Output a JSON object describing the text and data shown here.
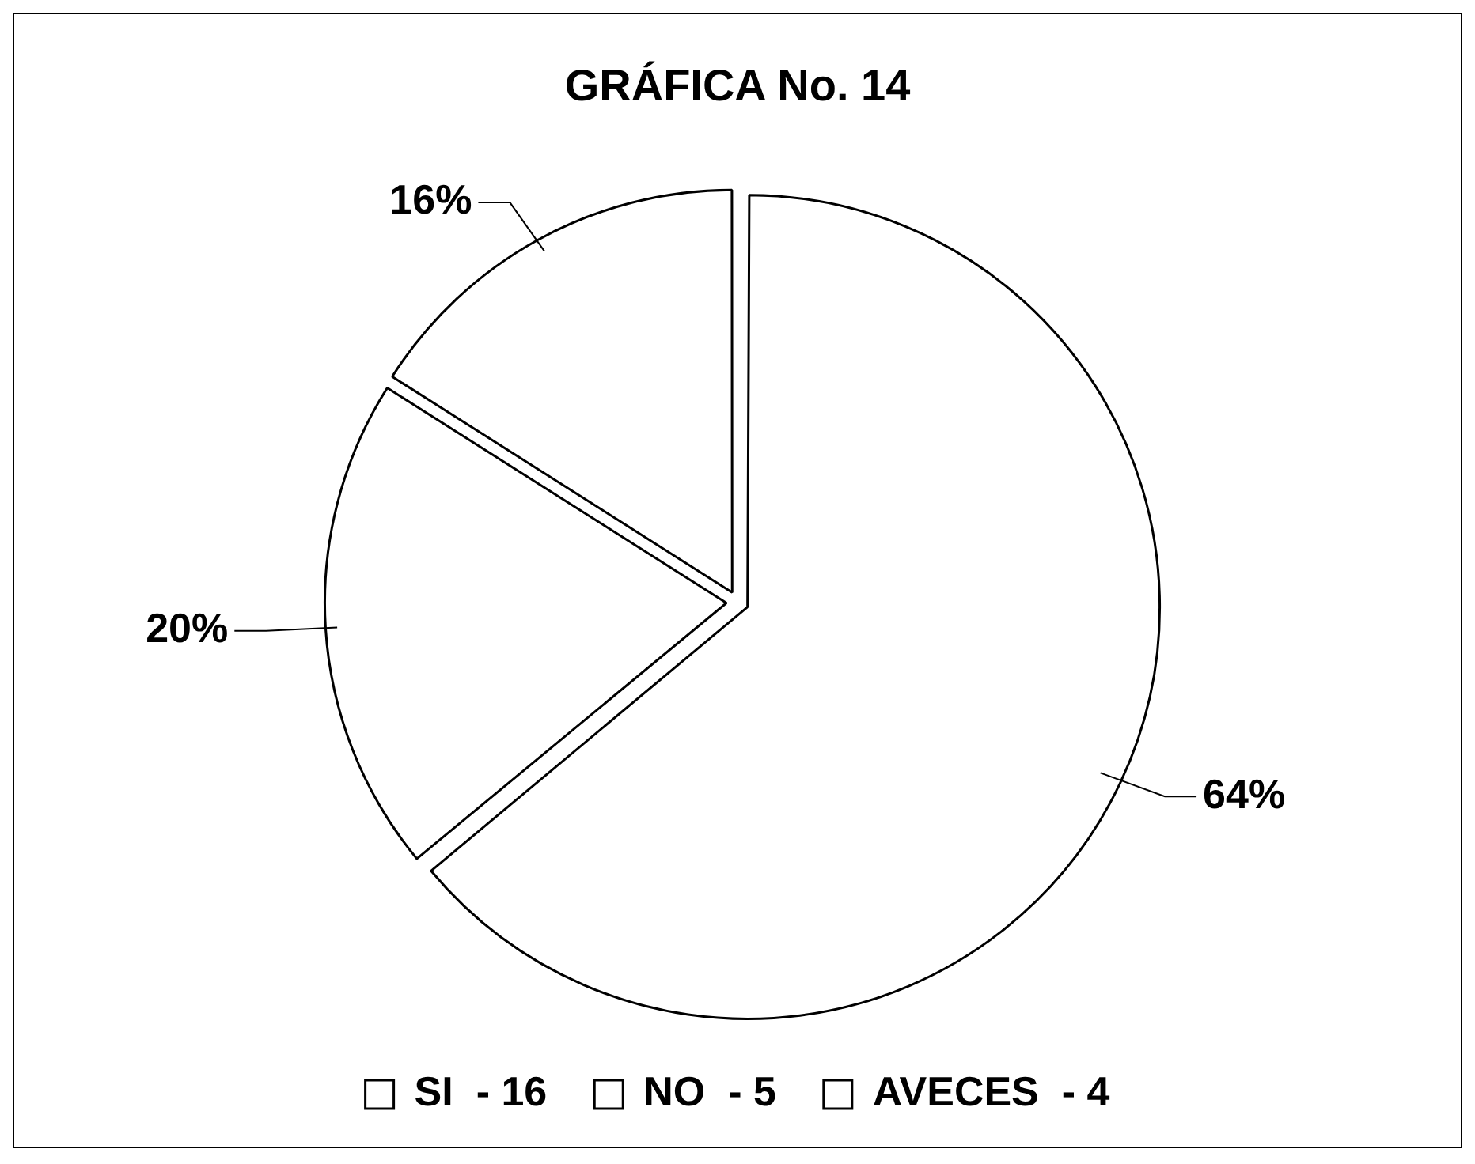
{
  "chart_data": {
    "type": "pie",
    "title": "GRÁFICA No. 14",
    "categories": [
      "SI  - 16",
      "NO  - 5",
      "AVECES  - 4"
    ],
    "values": [
      64,
      20,
      16
    ],
    "colors": [
      "#ffffff",
      "#ffffff",
      "#ffffff"
    ],
    "value_labels": [
      "64%",
      "20%",
      "16%"
    ],
    "legend": "bottom"
  }
}
